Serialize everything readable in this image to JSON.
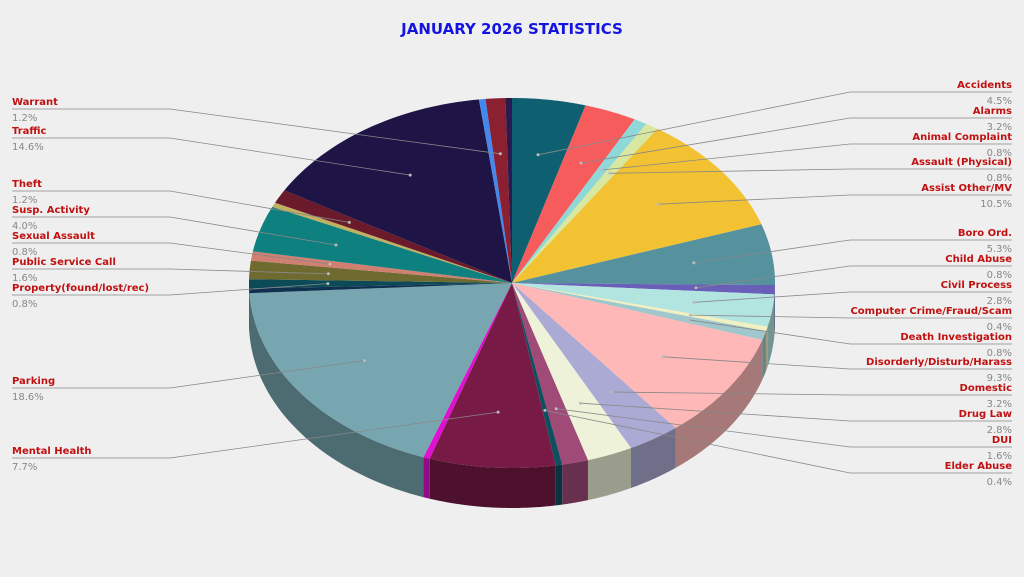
{
  "chart_data": {
    "type": "pie3d",
    "title": "JANUARY 2026 STATISTICS",
    "categories": [
      "Accidents",
      "Alarms",
      "Animal Complaint",
      "Assault (Physical)",
      "Assist Other/MV",
      "Boro Ord.",
      "Child Abuse",
      "Civil Process",
      "Computer Crime/Fraud/Scam",
      "Death Investigation",
      "Disorderly/Disturb/Harass",
      "Domestic",
      "Drug Law",
      "DUI",
      "Elder Abuse",
      "Mental Health",
      null,
      "Parking",
      null,
      "Property(found/lost/rec)",
      "Public Service Call",
      "Sexual Assault",
      "Susp. Activity",
      null,
      "Theft",
      "Traffic",
      null,
      "Warrant",
      null
    ],
    "values": [
      4.5,
      3.2,
      0.8,
      0.8,
      10.5,
      5.3,
      0.8,
      2.8,
      0.4,
      0.8,
      9.3,
      3.2,
      2.8,
      1.6,
      0.4,
      7.7,
      0.4,
      18.6,
      0.4,
      0.8,
      1.6,
      0.8,
      4.0,
      0.4,
      1.2,
      14.6,
      0.4,
      1.2,
      0.4
    ],
    "value_labels": [
      "4.5%",
      "3.2%",
      "0.8%",
      "0.8%",
      "10.5%",
      "5.3%",
      "0.8%",
      "2.8%",
      "0.4%",
      "0.8%",
      "9.3%",
      "3.2%",
      "2.8%",
      "1.6%",
      "0.4%",
      "7.7%",
      null,
      "18.6%",
      null,
      "0.8%",
      "1.6%",
      "0.8%",
      "4.0%",
      null,
      "1.2%",
      "14.6%",
      null,
      "1.2%",
      null
    ],
    "colors": [
      "#0e6070",
      "#f75c5c",
      "#8fd8d8",
      "#d8e8a0",
      "#f2c232",
      "#55929e",
      "#6a5fb8",
      "#b2e4e0",
      "#f0f0c0",
      "#a0c8cc",
      "#ffb8b8",
      "#aaaad4",
      "#eef2d8",
      "#a04a78",
      "#0e5060",
      "#771a45",
      "#e010d0",
      "#77a6b0",
      "#103050",
      "#0c4a58",
      "#6e6a30",
      "#d08070",
      "#0e8080",
      "#c0b060",
      "#6a1a2a",
      "#1e1445",
      "#4488ee",
      "#8a2030",
      "#2a1a50"
    ]
  }
}
